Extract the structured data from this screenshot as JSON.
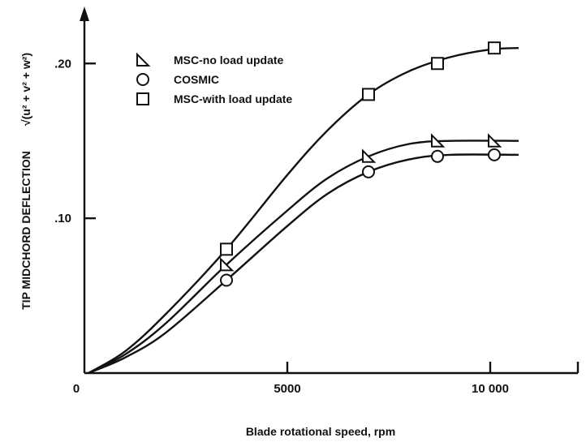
{
  "chart_data": {
    "type": "scatter",
    "xlabel": "Blade rotational speed, rpm",
    "ylabel": "TIP MIDCHORD DEFLECTION",
    "ylabel_formula": "√(u² + v² + w²)",
    "xlim": [
      0,
      12000
    ],
    "ylim": [
      0,
      0.23
    ],
    "x_ticks": [
      {
        "value": 0,
        "label": "0"
      },
      {
        "value": 5000,
        "label": "5000"
      },
      {
        "value": 10000,
        "label": "10 000"
      }
    ],
    "y_ticks": [
      {
        "value": 0.1,
        "label": ".10"
      },
      {
        "value": 0.2,
        "label": ".20"
      }
    ],
    "grid": false,
    "legend_position": "top-left",
    "series": [
      {
        "name": "MSC-no load update",
        "marker": "triangle",
        "points": [
          [
            3500,
            0.07
          ],
          [
            7000,
            0.14
          ],
          [
            8700,
            0.15
          ],
          [
            10100,
            0.15
          ]
        ],
        "curve": [
          [
            100,
            0
          ],
          [
            1000,
            0.012
          ],
          [
            2000,
            0.032
          ],
          [
            3500,
            0.07
          ],
          [
            5000,
            0.105
          ],
          [
            6000,
            0.126
          ],
          [
            7000,
            0.14
          ],
          [
            8000,
            0.148
          ],
          [
            9000,
            0.15
          ],
          [
            10700,
            0.15
          ]
        ]
      },
      {
        "name": "COSMIC",
        "marker": "circle",
        "points": [
          [
            3500,
            0.06
          ],
          [
            7000,
            0.13
          ],
          [
            8700,
            0.14
          ],
          [
            10100,
            0.141
          ]
        ],
        "curve": [
          [
            100,
            0
          ],
          [
            1000,
            0.01
          ],
          [
            2000,
            0.026
          ],
          [
            3500,
            0.06
          ],
          [
            5000,
            0.095
          ],
          [
            6000,
            0.116
          ],
          [
            7000,
            0.13
          ],
          [
            8000,
            0.138
          ],
          [
            9000,
            0.141
          ],
          [
            10700,
            0.141
          ]
        ]
      },
      {
        "name": "MSC-with load update",
        "marker": "square",
        "points": [
          [
            3500,
            0.08
          ],
          [
            7000,
            0.18
          ],
          [
            8700,
            0.2
          ],
          [
            10100,
            0.21
          ]
        ],
        "curve": [
          [
            100,
            0
          ],
          [
            1000,
            0.014
          ],
          [
            2000,
            0.038
          ],
          [
            3500,
            0.08
          ],
          [
            5000,
            0.128
          ],
          [
            6000,
            0.157
          ],
          [
            7000,
            0.18
          ],
          [
            8000,
            0.195
          ],
          [
            9000,
            0.204
          ],
          [
            10000,
            0.209
          ],
          [
            10700,
            0.21
          ]
        ]
      }
    ]
  }
}
